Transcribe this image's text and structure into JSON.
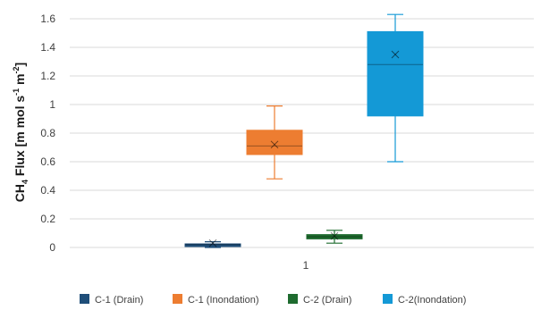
{
  "chart_data": {
    "type": "boxplot",
    "title": "",
    "xlabel": "",
    "ylabel": {
      "main": "CH",
      "sub": "4",
      "rest": " Flux [m mol s",
      "sup1": "-1",
      "mid": " m",
      "sup2": "-2",
      "end": "]"
    },
    "categories": [
      "1"
    ],
    "ylim": [
      0,
      1.6
    ],
    "yticks": [
      "0",
      "0.2",
      "0.4",
      "0.6",
      "0.8",
      "1",
      "1.2",
      "1.4",
      "1.6"
    ],
    "grid": true,
    "legend_position": "bottom",
    "series": [
      {
        "name": "C-1 (Drain)",
        "color": "#1f4e79",
        "min": 0.0,
        "q1": 0.015,
        "median": 0.02,
        "q3": 0.025,
        "max": 0.04,
        "mean": 0.03
      },
      {
        "name": "C-1 (Inondation)",
        "color": "#ed7d31",
        "min": 0.48,
        "q1": 0.65,
        "median": 0.71,
        "q3": 0.82,
        "max": 0.99,
        "mean": 0.72
      },
      {
        "name": "C-2 (Drain)",
        "color": "#1e6b2f",
        "min": 0.03,
        "q1": 0.06,
        "median": 0.075,
        "q3": 0.09,
        "max": 0.12,
        "mean": 0.08
      },
      {
        "name": "C-2(Inondation)",
        "color": "#1499d6",
        "min": 0.6,
        "q1": 0.92,
        "median": 1.28,
        "q3": 1.51,
        "max": 1.63,
        "mean": 1.35
      }
    ]
  }
}
